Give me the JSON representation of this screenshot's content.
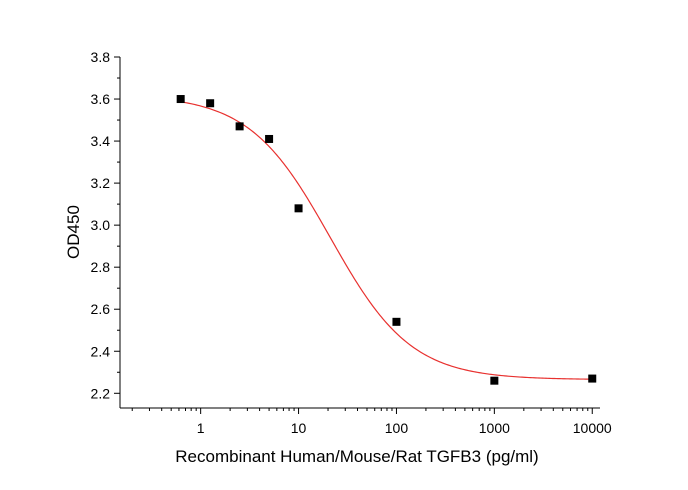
{
  "chart_data": {
    "type": "scatter",
    "title": "",
    "xlabel": "Recombinant Human/Mouse/Rat TGFB3 (pg/ml)",
    "ylabel": "OD450",
    "x_scale": "log",
    "xlim": [
      0.15,
      12000
    ],
    "ylim": [
      2.13,
      3.8
    ],
    "x_ticks": [
      1,
      10,
      100,
      1000,
      10000
    ],
    "x_tick_labels": [
      "1",
      "10",
      "100",
      "1000",
      "10000"
    ],
    "y_ticks": [
      2.2,
      2.4,
      2.6,
      2.8,
      3.0,
      3.2,
      3.4,
      3.6,
      3.8
    ],
    "y_tick_labels": [
      "2.2",
      "2.4",
      "2.6",
      "2.8",
      "3.0",
      "3.2",
      "3.4",
      "3.6",
      "3.8"
    ],
    "grid": false,
    "series": [
      {
        "marker": "square",
        "color": "#000000",
        "x": [
          0.625,
          1.25,
          2.5,
          5,
          10,
          100,
          1000,
          10000
        ],
        "y": [
          3.6,
          3.58,
          3.47,
          3.41,
          3.08,
          2.54,
          2.26,
          2.27
        ]
      }
    ],
    "fit_curve": {
      "model": "4PL",
      "color": "#e8312f",
      "x_range": [
        0.625,
        10000
      ],
      "top": 3.62,
      "bottom": 2.265,
      "ec50": 21,
      "hill": 1.05
    }
  }
}
